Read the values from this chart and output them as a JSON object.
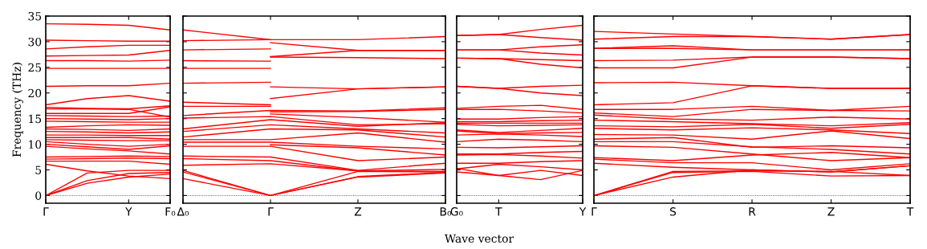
{
  "chart_data": [
    {
      "type": "line",
      "color": "#ff0000",
      "ylabel": "Frequency (THz)",
      "ylim": [
        -1.5,
        35
      ],
      "categories": [
        "Γ",
        null,
        "Y",
        "F₀"
      ],
      "yticks": [
        0,
        5,
        10,
        15,
        20,
        25,
        30,
        35
      ],
      "ref_lines": [
        {
          "axis": "y",
          "value": 0,
          "color": "#0000ff",
          "line_style": "dotted"
        }
      ],
      "series": [
        {
          "values": [
            33.5,
            33.4,
            33.2,
            32.3
          ]
        },
        {
          "values": [
            30.3,
            30.2,
            30.1,
            30.1
          ]
        },
        {
          "values": [
            28.6,
            29.0,
            29.3,
            29.3
          ]
        },
        {
          "values": [
            27.2,
            27.3,
            27.4,
            28.3
          ]
        },
        {
          "values": [
            26.3,
            26.3,
            26.2,
            26.4
          ]
        },
        {
          "values": [
            24.8,
            24.8,
            24.8,
            24.8
          ]
        },
        {
          "values": [
            21.3,
            21.4,
            21.4,
            21.9
          ]
        },
        {
          "values": [
            17.7,
            18.9,
            19.5,
            18.4
          ]
        },
        {
          "values": [
            17.2,
            17.0,
            16.9,
            17.5
          ]
        },
        {
          "values": [
            16.9,
            16.9,
            16.8,
            15.3
          ]
        },
        {
          "values": [
            16.0,
            16.0,
            16.0,
            17.3
          ]
        },
        {
          "values": [
            15.6,
            15.5,
            15.4,
            15.5
          ]
        },
        {
          "values": [
            15.0,
            14.9,
            14.8,
            15.0
          ]
        },
        {
          "values": [
            14.5,
            14.4,
            14.3,
            14.3
          ]
        },
        {
          "values": [
            13.3,
            13.6,
            13.8,
            13.7
          ]
        },
        {
          "values": [
            13.0,
            12.9,
            12.7,
            13.0
          ]
        },
        {
          "values": [
            12.5,
            12.4,
            12.2,
            12.4
          ]
        },
        {
          "values": [
            11.8,
            11.8,
            11.7,
            11.7
          ]
        },
        {
          "values": [
            11.3,
            11.3,
            11.3,
            11.0
          ]
        },
        {
          "values": [
            10.9,
            10.8,
            10.7,
            10.7
          ]
        },
        {
          "values": [
            10.5,
            10.0,
            9.6,
            10.0
          ]
        },
        {
          "values": [
            10.0,
            9.5,
            9.0,
            9.7
          ]
        },
        {
          "values": [
            9.6,
            9.1,
            8.7,
            8.1
          ]
        },
        {
          "values": [
            7.5,
            7.6,
            7.7,
            7.6
          ]
        },
        {
          "values": [
            7.1,
            7.2,
            7.3,
            7.2
          ]
        },
        {
          "values": [
            6.7,
            6.7,
            6.7,
            6.1
          ]
        },
        {
          "values": [
            6.1,
            4.8,
            3.8,
            3.3
          ]
        },
        {
          "values": [
            0,
            4.4,
            4.9,
            4.9
          ]
        },
        {
          "values": [
            0,
            2.9,
            4.3,
            4.5
          ]
        },
        {
          "values": [
            0,
            2.4,
            3.6,
            4.2
          ]
        }
      ]
    },
    {
      "type": "line",
      "color": "#ff0000",
      "ylim": [
        -1.5,
        35
      ],
      "tick_labels": "x",
      "categories": [
        "Δ₀",
        "Γ",
        "Z",
        "B₀"
      ],
      "yticks": [
        0,
        5,
        10,
        15,
        20,
        25,
        30,
        35
      ],
      "ref_lines": [
        {
          "axis": "y",
          "value": 0,
          "color": "#0000ff",
          "line_style": "dotted"
        }
      ],
      "series": [
        {
          "values": [
            30.2,
            30.4,
            30.4,
            31.0
          ]
        },
        {
          "values": [
            12.5,
            13.8,
            13.0,
            12.2
          ]
        },
        {
          "values": [
            11.4,
            13.0,
            12.8,
            11.4
          ]
        },
        {
          "values": [
            10.9,
            10.9,
            12.2,
            10.4
          ]
        },
        {
          "values": [
            10.4,
            10.4,
            9.6,
            9.1
          ]
        },
        {
          "values": [
            9.6,
            9.6,
            6.8,
            7.5
          ]
        },
        {
          "values": [
            7.7,
            7.5,
            4.9,
            6.3
          ]
        },
        {
          "values": [
            7.2,
            6.8,
            4.8,
            5.1
          ]
        },
        {
          "values": [
            5.9,
            6.2,
            4.8,
            4.7
          ]
        },
        {
          "values": [
            4.9,
            0,
            4.7,
            4.6
          ]
        },
        {
          "values": [
            4.6,
            0,
            3.7,
            4.5
          ]
        },
        {
          "values": [
            3.3,
            0,
            3.6,
            4.4
          ]
        },
        {
          "values": [
            32.3,
            30.4,
            null,
            null
          ]
        },
        {
          "values": [
            28.4,
            28.6,
            null,
            null
          ]
        },
        {
          "values": [
            26.3,
            26.2,
            null,
            null
          ]
        },
        {
          "values": [
            24.8,
            24.8,
            null,
            null
          ]
        },
        {
          "values": [
            21.9,
            22.1,
            null,
            null
          ]
        },
        {
          "values": [
            18.2,
            17.7,
            null,
            null
          ]
        },
        {
          "values": [
            17.4,
            17.4,
            null,
            null
          ]
        },
        {
          "values": [
            15.6,
            16.6,
            16.5,
            17.1
          ]
        },
        {
          "values": [
            15.1,
            15.4,
            13.8,
            14.0
          ]
        },
        {
          "values": [
            13.0,
            14.8,
            13.5,
            14.2
          ]
        },
        {
          "values": [
            null,
            29.8,
            28.3,
            28.3
          ]
        },
        {
          "values": [
            null,
            27.1,
            28.3,
            28.3
          ]
        },
        {
          "values": [
            null,
            27.0,
            26.9,
            26.7
          ]
        },
        {
          "values": [
            null,
            21.2,
            20.8,
            21.2
          ]
        },
        {
          "values": [
            null,
            18.9,
            20.8,
            21.2
          ]
        },
        {
          "values": [
            null,
            16.3,
            16.4,
            16.8
          ]
        },
        {
          "values": [
            null,
            15.9,
            15.2,
            14.3
          ]
        },
        {
          "values": [
            null,
            9.9,
            9.3,
            7.9
          ]
        }
      ]
    },
    {
      "type": "line",
      "color": "#ff0000",
      "xlabel": "Wave vector",
      "ylim": [
        -1.5,
        35
      ],
      "tick_labels": "x",
      "categories": [
        "G₀",
        "T",
        null,
        "Y"
      ],
      "yticks": [
        0,
        5,
        10,
        15,
        20,
        25,
        30,
        35
      ],
      "ref_lines": [
        {
          "axis": "y",
          "value": 0,
          "color": "#0000ff",
          "line_style": "dotted"
        }
      ],
      "series": [
        {
          "values": [
            31.2,
            31.4,
            32.4,
            33.2
          ]
        },
        {
          "values": [
            31.2,
            31.4,
            30.8,
            30.3
          ]
        },
        {
          "values": [
            28.4,
            28.4,
            29.0,
            29.4
          ]
        },
        {
          "values": [
            28.4,
            28.4,
            27.8,
            27.4
          ]
        },
        {
          "values": [
            26.8,
            26.7,
            26.5,
            26.3
          ]
        },
        {
          "values": [
            26.8,
            26.7,
            25.6,
            24.9
          ]
        },
        {
          "values": [
            21.3,
            20.9,
            21.3,
            21.5
          ]
        },
        {
          "values": [
            21.3,
            20.9,
            20.0,
            19.5
          ]
        },
        {
          "values": [
            17.0,
            17.4,
            17.6,
            16.8
          ]
        },
        {
          "values": [
            16.8,
            16.8,
            16.5,
            16.1
          ]
        },
        {
          "values": [
            14.9,
            14.9,
            15.2,
            15.4
          ]
        },
        {
          "values": [
            14.4,
            14.4,
            14.6,
            14.7
          ]
        },
        {
          "values": [
            14.1,
            14.1,
            14.1,
            14.1
          ]
        },
        {
          "values": [
            13.9,
            13.6,
            13.7,
            13.8
          ]
        },
        {
          "values": [
            12.8,
            12.3,
            12.7,
            13.1
          ]
        },
        {
          "values": [
            12.6,
            12.1,
            12.2,
            12.3
          ]
        },
        {
          "values": [
            11.8,
            12.0,
            11.8,
            11.5
          ]
        },
        {
          "values": [
            10.5,
            11.0,
            10.8,
            10.5
          ]
        },
        {
          "values": [
            9.4,
            9.3,
            9.5,
            9.7
          ]
        },
        {
          "values": [
            8.1,
            8.1,
            8.4,
            8.6
          ]
        },
        {
          "values": [
            7.9,
            8.0,
            7.7,
            7.3
          ]
        },
        {
          "values": [
            6.3,
            6.3,
            6.6,
            6.8
          ]
        },
        {
          "values": [
            5.2,
            6.1,
            5.6,
            5.0
          ]
        },
        {
          "values": [
            4.6,
            3.9,
            3.1,
            4.9
          ]
        },
        {
          "values": [
            5.3,
            3.9,
            4.9,
            3.9
          ]
        }
      ]
    },
    {
      "type": "line",
      "color": "#ff0000",
      "ylim": [
        -1.5,
        35
      ],
      "tick_labels": "x",
      "categories": [
        "Γ",
        "S",
        "R",
        "Z",
        "T"
      ],
      "yticks": [
        0,
        5,
        10,
        15,
        20,
        25,
        30,
        35
      ],
      "ref_lines": [
        {
          "axis": "y",
          "value": 0,
          "color": "#0000ff",
          "line_style": "dotted"
        }
      ],
      "series": [
        {
          "values": [
            32.0,
            31.5,
            31.0,
            30.5,
            31.4
          ]
        },
        {
          "values": [
            30.5,
            31.0,
            31.0,
            30.5,
            31.4
          ]
        },
        {
          "values": [
            28.7,
            29.2,
            28.4,
            28.4,
            28.4
          ]
        },
        {
          "values": [
            28.7,
            28.7,
            28.4,
            28.4,
            28.4
          ]
        },
        {
          "values": [
            26.3,
            26.4,
            27.0,
            27.0,
            26.7
          ]
        },
        {
          "values": [
            24.9,
            24.9,
            27.0,
            27.0,
            26.7
          ]
        },
        {
          "values": [
            22.0,
            22.1,
            21.4,
            20.9,
            20.9
          ]
        },
        {
          "values": [
            17.7,
            18.1,
            21.4,
            20.9,
            20.9
          ]
        },
        {
          "values": [
            16.8,
            16.8,
            17.4,
            16.6,
            17.4
          ]
        },
        {
          "values": [
            16.1,
            15.4,
            16.8,
            16.6,
            16.5
          ]
        },
        {
          "values": [
            15.7,
            14.9,
            14.7,
            15.3,
            14.9
          ]
        },
        {
          "values": [
            14.7,
            14.4,
            14.0,
            13.6,
            14.2
          ]
        },
        {
          "values": [
            13.6,
            13.4,
            13.9,
            13.1,
            13.9
          ]
        },
        {
          "values": [
            13.1,
            12.8,
            13.2,
            12.8,
            12.1
          ]
        },
        {
          "values": [
            11.9,
            11.8,
            11.0,
            12.6,
            11.1
          ]
        },
        {
          "values": [
            11.0,
            11.3,
            9.4,
            9.7,
            9.3
          ]
        },
        {
          "values": [
            10.5,
            10.5,
            9.5,
            9.0,
            8.1
          ]
        },
        {
          "values": [
            9.7,
            9.4,
            8.1,
            6.8,
            7.4
          ]
        },
        {
          "values": [
            7.4,
            6.8,
            7.9,
            8.4,
            7.4
          ]
        },
        {
          "values": [
            7.1,
            6.4,
            6.4,
            5.0,
            6.2
          ]
        },
        {
          "values": [
            6.3,
            5.5,
            5.0,
            4.6,
            5.8
          ]
        },
        {
          "values": [
            0,
            4.7,
            4.8,
            4.7,
            3.9
          ]
        },
        {
          "values": [
            0,
            4.5,
            4.7,
            3.8,
            3.9
          ]
        },
        {
          "values": [
            0,
            3.6,
            5.0,
            4.6,
            5.8
          ]
        }
      ]
    }
  ]
}
